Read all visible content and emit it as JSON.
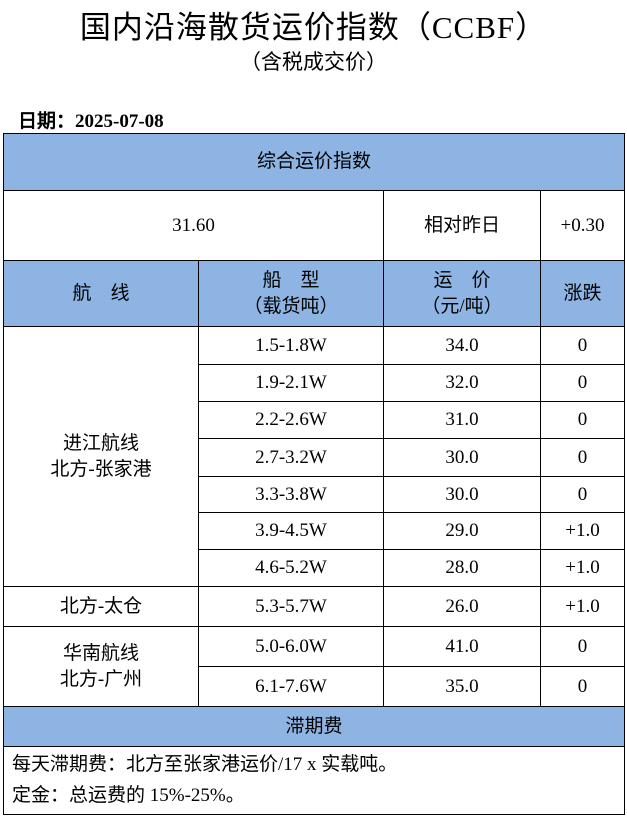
{
  "header": {
    "title": "国内沿海散货运价指数（CCBF）",
    "subtitle": "（含税成交价）",
    "date": "日期：2025-07-08"
  },
  "table": {
    "section": "综合运价指数",
    "index": "31.60",
    "compare_label": "相对昨日",
    "change": "+0.30",
    "columns": [
      [
        "航　线"
      ],
      [
        "船　型",
        "（载货吨）"
      ],
      [
        "运　价",
        "（元/吨）"
      ],
      [
        "涨跌"
      ]
    ],
    "groups": [
      {
        "route": [
          "进江航线",
          "北方-张家港"
        ],
        "rows": [
          [
            "1.5-1.8W",
            "34.0",
            "0"
          ],
          [
            "1.9-2.1W",
            "32.0",
            "0"
          ],
          [
            "2.2-2.6W",
            "31.0",
            "0"
          ],
          [
            "2.7-3.2W",
            "30.0",
            "0"
          ],
          [
            "3.3-3.8W",
            "30.0",
            "0"
          ],
          [
            "3.9-4.5W",
            "29.0",
            "+1.0"
          ],
          [
            "4.6-5.2W",
            "28.0",
            "+1.0"
          ]
        ]
      },
      {
        "route": [
          "北方-太仓"
        ],
        "rows": [
          [
            "5.3-5.7W",
            "26.0",
            "+1.0"
          ]
        ]
      },
      {
        "route": [
          "华南航线",
          "北方-广州"
        ],
        "rows": [
          [
            "5.0-6.0W",
            "41.0",
            "0"
          ],
          [
            "6.1-7.6W",
            "35.0",
            "0"
          ]
        ]
      }
    ],
    "fee_title": "滞期费",
    "notes": [
      "每天滞期费：北方至张家港运价/17 x 实载吨。",
      "定金：总运费的 15%-25%。"
    ]
  }
}
